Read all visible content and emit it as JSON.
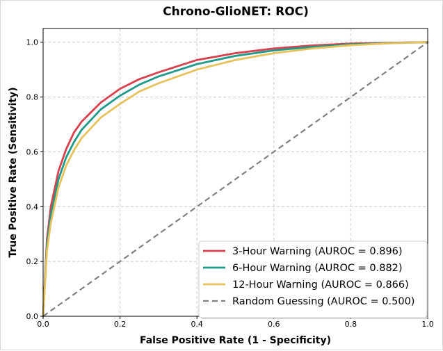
{
  "chart_data": {
    "type": "line",
    "title": "Chrono-GlioNET: ROC)",
    "xlabel": "False Positive Rate (1 - Specificity)",
    "ylabel": "True Positive Rate (Sensitivity)",
    "xlim": [
      0.0,
      1.0
    ],
    "ylim": [
      0.0,
      1.05
    ],
    "xticks": [
      "0.0",
      "0.2",
      "0.4",
      "0.6",
      "0.8",
      "1.0"
    ],
    "yticks": [
      "0.0",
      "0.2",
      "0.4",
      "0.6",
      "0.8",
      "1.0"
    ],
    "grid": true,
    "legend_position": "lower-right",
    "series": [
      {
        "name": "3-Hour Warning (AUROC = 0.896)",
        "color": "#d9404d",
        "style": "solid",
        "x": [
          0.0,
          0.01,
          0.02,
          0.04,
          0.06,
          0.08,
          0.1,
          0.15,
          0.2,
          0.25,
          0.3,
          0.4,
          0.5,
          0.6,
          0.7,
          0.8,
          0.9,
          1.0
        ],
        "y": [
          0.0,
          0.28,
          0.4,
          0.53,
          0.61,
          0.67,
          0.71,
          0.78,
          0.83,
          0.865,
          0.89,
          0.935,
          0.96,
          0.977,
          0.988,
          0.995,
          0.998,
          1.0
        ]
      },
      {
        "name": "6-Hour Warning (AUROC = 0.882)",
        "color": "#1f9a8a",
        "style": "solid",
        "x": [
          0.0,
          0.01,
          0.02,
          0.04,
          0.06,
          0.08,
          0.1,
          0.15,
          0.2,
          0.25,
          0.3,
          0.4,
          0.5,
          0.6,
          0.7,
          0.8,
          0.9,
          1.0
        ],
        "y": [
          0.0,
          0.26,
          0.37,
          0.5,
          0.58,
          0.635,
          0.68,
          0.755,
          0.805,
          0.845,
          0.875,
          0.92,
          0.95,
          0.97,
          0.983,
          0.992,
          0.997,
          1.0
        ]
      },
      {
        "name": "12-Hour Warning (AUROC = 0.866)",
        "color": "#e6c25c",
        "style": "solid",
        "x": [
          0.0,
          0.01,
          0.02,
          0.04,
          0.06,
          0.08,
          0.1,
          0.15,
          0.2,
          0.25,
          0.3,
          0.4,
          0.5,
          0.6,
          0.7,
          0.8,
          0.9,
          1.0
        ],
        "y": [
          0.0,
          0.24,
          0.34,
          0.47,
          0.55,
          0.605,
          0.65,
          0.725,
          0.775,
          0.82,
          0.85,
          0.9,
          0.935,
          0.96,
          0.977,
          0.989,
          0.996,
          1.0
        ]
      },
      {
        "name": "Random Guessing (AUROC = 0.500)",
        "color": "#7f7f7f",
        "style": "dashed",
        "x": [
          0.0,
          1.0
        ],
        "y": [
          0.0,
          1.0
        ]
      }
    ]
  }
}
